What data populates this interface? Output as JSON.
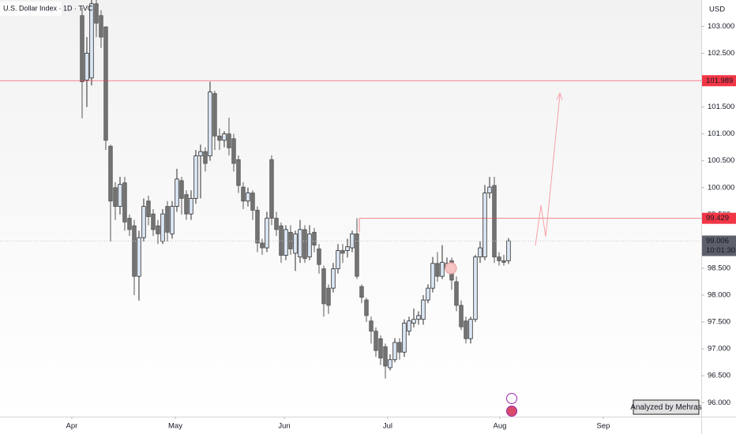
{
  "chart_data": {
    "type": "candlestick",
    "title": "U.S. Dollar Index · 1D · TVC",
    "currency": "USD",
    "watermark": "Analyzed by Mehras",
    "colors": {
      "up_fill": "#dce8f6",
      "up_stroke": "#2b2b2b",
      "down_fill": "#737373",
      "down_stroke": "#555555"
    },
    "series": {
      "open": [
        103.2,
        102.0,
        102.04,
        103.42,
        103.2,
        102.99,
        100.77,
        100.0,
        99.65,
        100.09,
        99.43,
        99.29,
        98.35,
        99.07,
        99.75,
        99.51,
        99.29,
        99.0,
        99.65,
        99.14,
        99.65,
        100.13,
        99.87,
        99.51,
        99.8,
        100.59,
        100.67,
        100.59,
        101.75,
        100.96,
        100.88,
        101.0,
        100.91,
        100.52,
        100.01,
        99.75,
        99.9,
        99.58,
        98.97,
        98.88,
        100.52,
        99.43,
        99.29,
        98.74,
        99.17,
        98.78,
        98.71,
        99.22,
        98.71,
        99.17,
        98.86,
        98.49,
        98.13,
        98.13,
        98.49,
        98.83,
        98.83,
        98.88,
        99.14,
        98.16,
        97.91,
        97.52,
        97.33,
        97.19,
        97.04,
        96.65,
        96.8,
        97.12,
        96.94,
        97.33,
        97.48,
        97.55,
        97.55,
        97.91,
        98.13,
        98.59,
        98.35,
        98.49,
        98.64,
        98.25,
        97.81,
        97.52,
        97.19,
        97.55,
        98.71,
        98.71,
        99.9,
        100.04,
        98.71,
        98.64,
        98.64
      ],
      "high": [
        103.35,
        102.8,
        103.5,
        103.5,
        103.3,
        103.0,
        100.8,
        100.1,
        100.2,
        100.2,
        99.5,
        99.4,
        99.2,
        99.8,
        99.85,
        99.6,
        99.4,
        99.6,
        99.75,
        99.75,
        100.35,
        100.2,
        99.95,
        99.95,
        100.7,
        100.8,
        100.75,
        101.97,
        101.8,
        101.1,
        101.05,
        101.3,
        101.0,
        100.6,
        100.1,
        100.0,
        99.95,
        99.65,
        99.05,
        99.55,
        100.6,
        99.55,
        99.35,
        99.3,
        99.3,
        99.2,
        99.4,
        99.3,
        99.3,
        99.25,
        98.95,
        98.55,
        98.2,
        98.6,
        98.95,
        98.95,
        99.05,
        99.2,
        99.43,
        98.2,
        97.95,
        97.6,
        97.4,
        97.25,
        97.1,
        96.9,
        97.2,
        97.2,
        97.55,
        97.6,
        97.75,
        97.7,
        98.0,
        98.2,
        98.71,
        98.8,
        98.93,
        98.7,
        98.7,
        98.35,
        97.9,
        97.6,
        97.6,
        98.75,
        99.0,
        100.05,
        100.2,
        100.2,
        98.8,
        98.75,
        99.06
      ],
      "low": [
        101.29,
        101.5,
        101.9,
        102.8,
        102.6,
        100.7,
        99.0,
        99.4,
        99.5,
        99.2,
        99.1,
        98.0,
        97.9,
        99.0,
        99.3,
        99.1,
        98.95,
        98.95,
        99.0,
        99.05,
        99.55,
        99.5,
        99.4,
        99.4,
        99.7,
        99.8,
        100.3,
        100.5,
        100.7,
        100.7,
        100.75,
        100.6,
        100.3,
        99.9,
        99.6,
        99.65,
        99.4,
        98.8,
        98.75,
        98.8,
        99.3,
        99.1,
        98.6,
        98.65,
        98.75,
        98.45,
        98.6,
        98.6,
        98.65,
        98.8,
        98.4,
        97.6,
        97.65,
        98.05,
        98.4,
        98.6,
        98.7,
        98.8,
        98.3,
        97.85,
        97.5,
        97.1,
        96.85,
        96.7,
        96.45,
        96.6,
        96.75,
        96.8,
        96.85,
        97.25,
        97.4,
        97.45,
        97.45,
        97.85,
        98.05,
        98.25,
        98.3,
        98.45,
        98.1,
        97.7,
        97.35,
        97.1,
        97.1,
        97.5,
        98.6,
        98.65,
        99.8,
        98.6,
        98.55,
        98.55,
        98.58
      ],
      "close": [
        101.97,
        102.5,
        103.42,
        103.06,
        102.8,
        100.88,
        99.75,
        99.65,
        100.06,
        99.36,
        99.22,
        98.35,
        99.07,
        99.65,
        99.46,
        99.22,
        99.14,
        99.51,
        99.17,
        99.65,
        100.16,
        99.8,
        99.51,
        99.8,
        100.59,
        100.67,
        100.45,
        101.78,
        100.96,
        100.88,
        101.0,
        100.74,
        100.45,
        100.04,
        99.75,
        99.9,
        99.58,
        98.97,
        98.88,
        99.43,
        99.43,
        99.22,
        98.74,
        99.22,
        98.86,
        99.14,
        99.22,
        98.68,
        99.14,
        98.93,
        98.57,
        97.84,
        97.81,
        98.49,
        98.83,
        98.78,
        98.9,
        99.14,
        98.35,
        97.96,
        97.62,
        97.33,
        96.97,
        96.83,
        96.68,
        96.8,
        97.12,
        96.94,
        97.48,
        97.52,
        97.55,
        97.62,
        97.91,
        98.13,
        98.59,
        98.35,
        98.61,
        98.59,
        98.28,
        97.81,
        97.41,
        97.19,
        97.55,
        98.71,
        98.88,
        99.9,
        100.01,
        98.71,
        98.64,
        98.61,
        99.01
      ]
    },
    "xlim": [
      -17.33,
      130.67
    ],
    "xticks": [
      {
        "value": -2.17,
        "label": "Apr"
      },
      {
        "value": 19.67,
        "label": "May"
      },
      {
        "value": 42.67,
        "label": "Jun"
      },
      {
        "value": 64.5,
        "label": "Jul"
      },
      {
        "value": 88.17,
        "label": "Aug"
      },
      {
        "value": 110,
        "label": "Sep"
      }
    ],
    "ylim": [
      95.74,
      103.49
    ],
    "yticks": [
      {
        "value": 96,
        "label": "96.000"
      },
      {
        "value": 96.5,
        "label": "96.500"
      },
      {
        "value": 97,
        "label": "97.000"
      },
      {
        "value": 97.5,
        "label": "97.500"
      },
      {
        "value": 98,
        "label": "98.000"
      },
      {
        "value": 98.5,
        "label": "98.500"
      },
      {
        "value": 99,
        "label": "99.000"
      },
      {
        "value": 99.5,
        "label": "99.500"
      },
      {
        "value": 100,
        "label": "100.000"
      },
      {
        "value": 100.5,
        "label": "100.500"
      },
      {
        "value": 101,
        "label": "101.000"
      },
      {
        "value": 101.5,
        "label": "101.500"
      },
      {
        "value": 102,
        "label": "102.000"
      },
      {
        "value": 102.5,
        "label": "102.500"
      },
      {
        "value": 103,
        "label": "103.000"
      }
    ],
    "levels": [
      {
        "value": 101.989,
        "color": "#f23645"
      },
      {
        "value": 99.429,
        "color": "#f23645"
      }
    ],
    "last_price": {
      "value": 99.006,
      "countdown": "10:01:30",
      "color": "#5d606b"
    }
  }
}
